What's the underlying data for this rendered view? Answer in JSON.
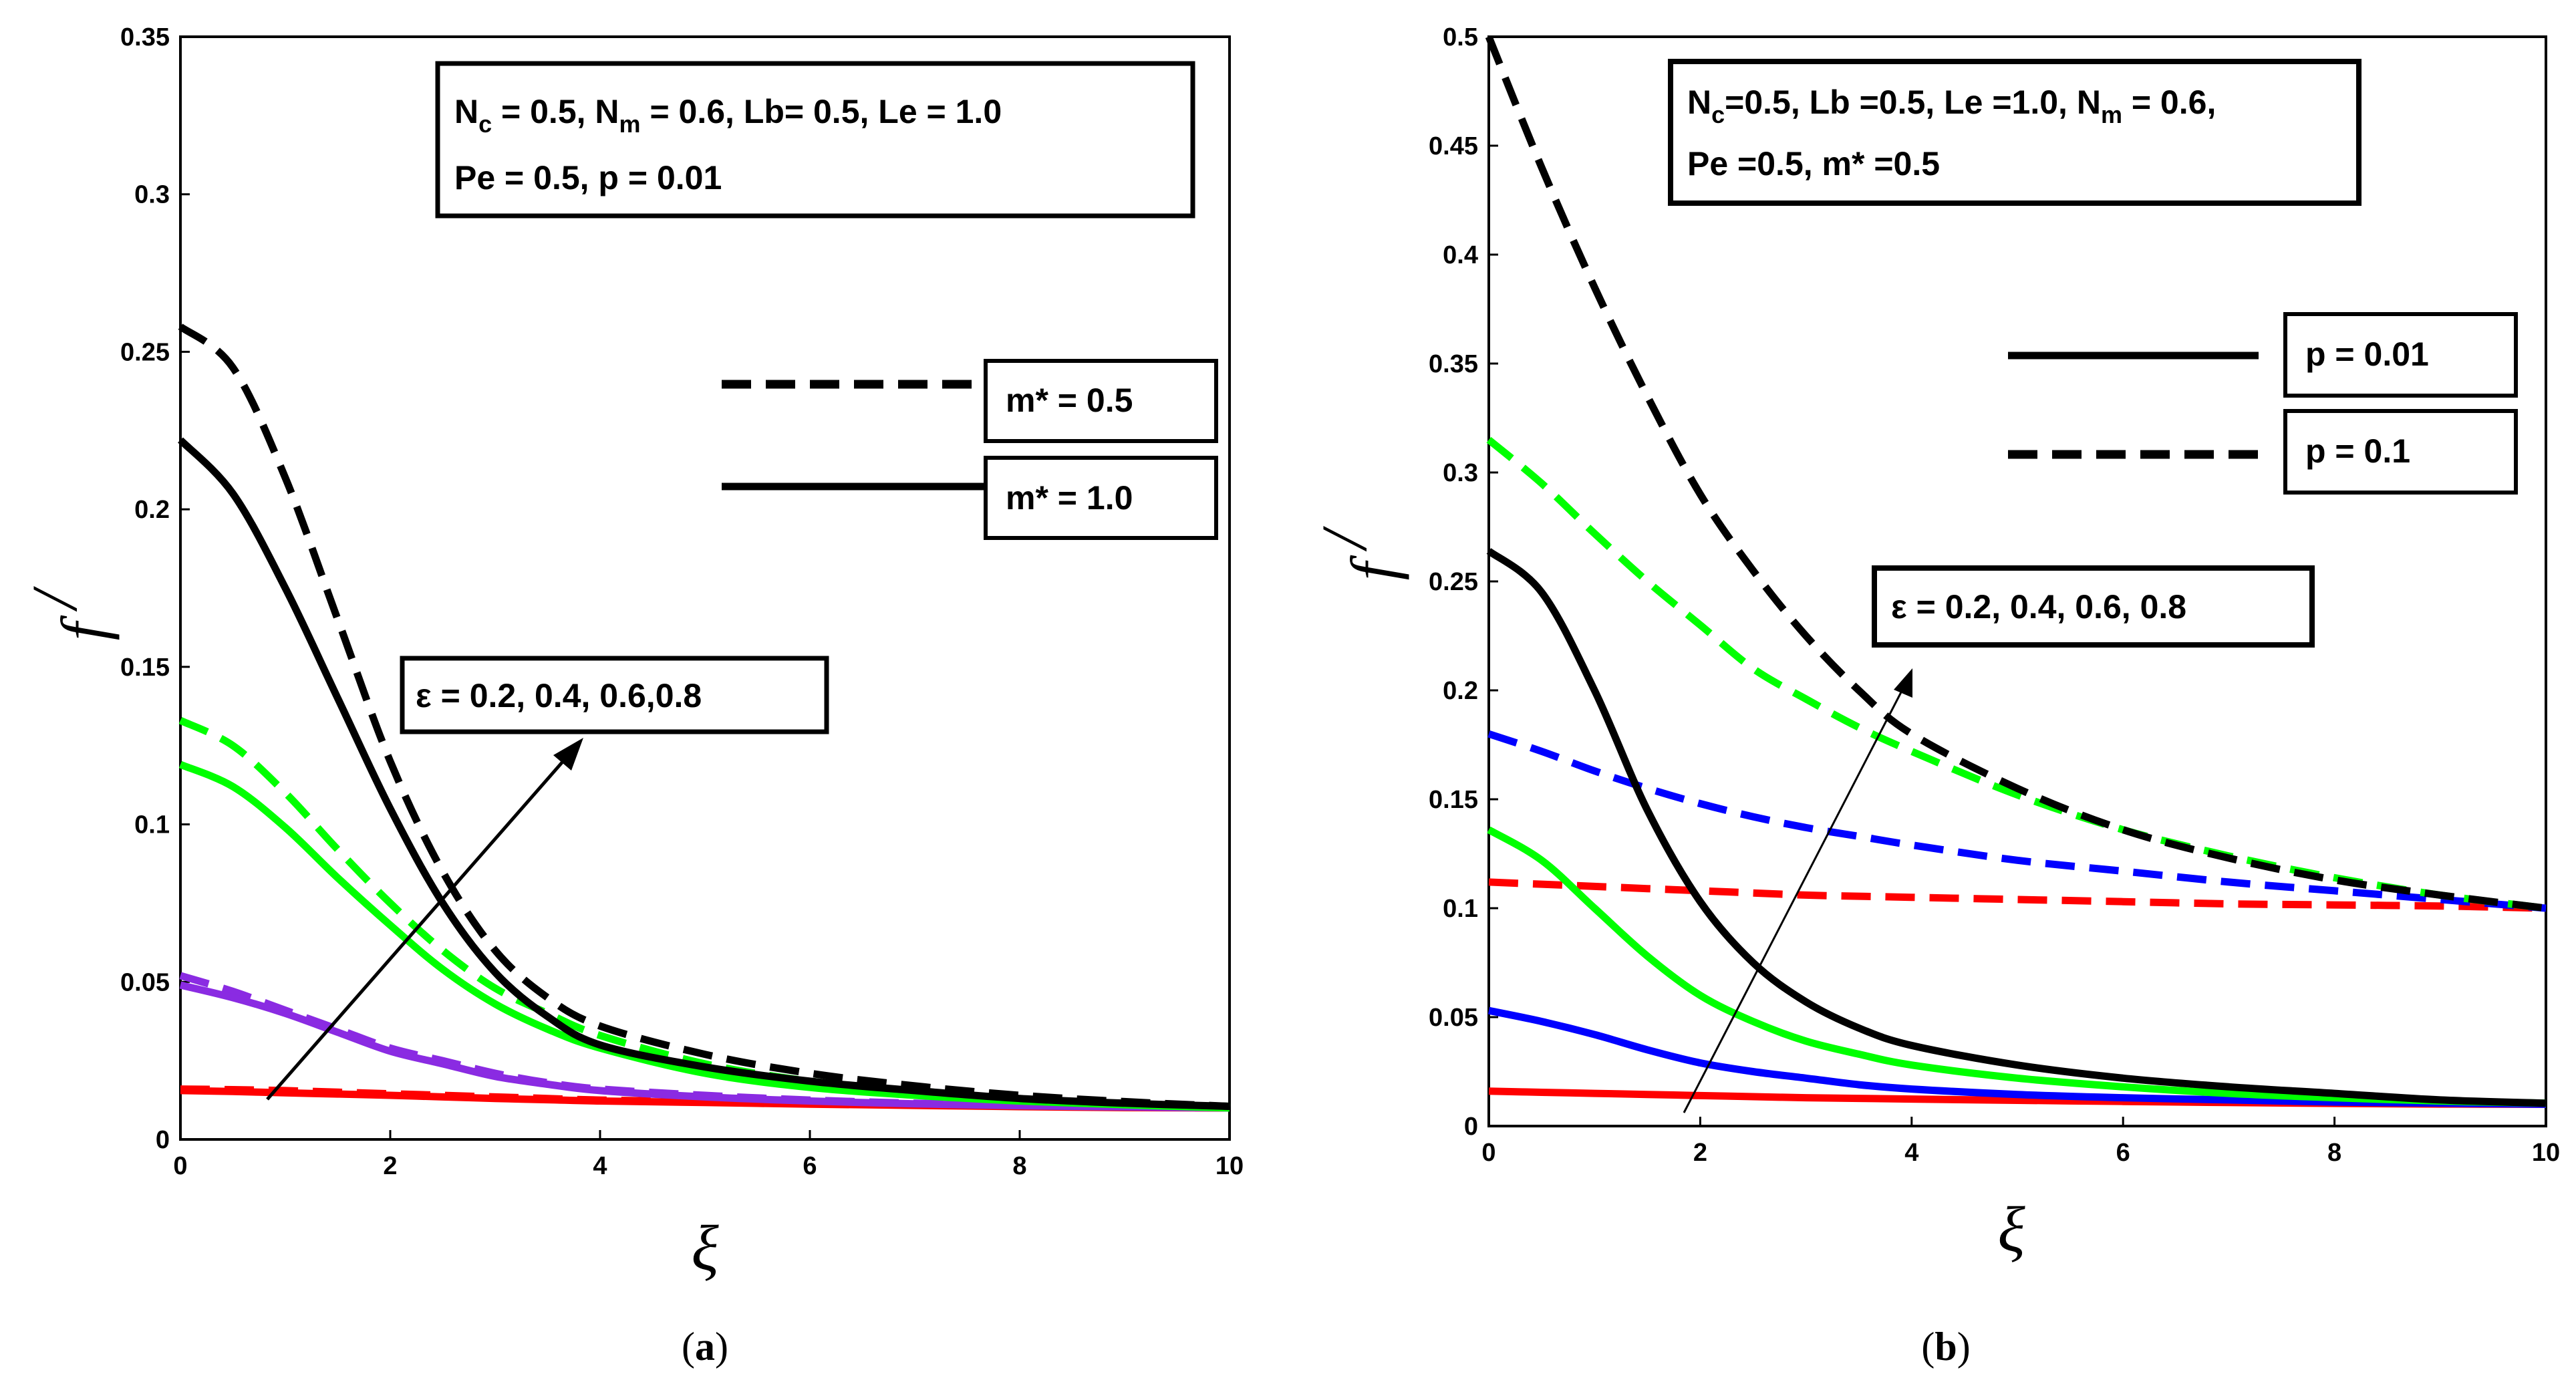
{
  "figure": {
    "panels": [
      {
        "caption_open": "(",
        "caption_letter": "a",
        "caption_close": ")",
        "ylabel": "f",
        "ylabel_prime": "/",
        "xlabel": "ξ",
        "params": {
          "line1": [
            "N",
            "c",
            " = 0.5, N",
            "m",
            " = 0.6, Lb= 0.5, Le = 1.0"
          ],
          "line2": "Pe = 0.5,  p = 0.01"
        },
        "legend": [
          {
            "label": "m* = 0.5",
            "style": "dashed"
          },
          {
            "label": "m* = 1.0",
            "style": "solid"
          }
        ],
        "annotation": "ε = 0.2, 0.4, 0.6,0.8"
      },
      {
        "caption_open": "(",
        "caption_letter": "b",
        "caption_close": ")",
        "ylabel": "f",
        "ylabel_prime": "/",
        "xlabel": "ξ",
        "params": {
          "line1": [
            "N",
            "c",
            "=0.5, Lb =0.5, Le =1.0, N",
            "m",
            " = 0.6,"
          ],
          "line2": "Pe =0.5, m* =0.5"
        },
        "legend": [
          {
            "label": "p = 0.01",
            "style": "solid"
          },
          {
            "label": "p = 0.1",
            "style": "dashed"
          }
        ],
        "annotation": "ε = 0.2, 0.4, 0.6, 0.8"
      }
    ]
  },
  "chart_data": [
    {
      "type": "line",
      "title": "",
      "xlabel": "ξ",
      "ylabel": "f'",
      "xlim": [
        0,
        10
      ],
      "ylim": [
        0,
        0.35
      ],
      "xticks": [
        0,
        2,
        4,
        6,
        8,
        10
      ],
      "yticks": [
        0,
        0.05,
        0.1,
        0.15,
        0.2,
        0.25,
        0.3,
        0.35
      ],
      "xtick_labels": [
        "0",
        "2",
        "4",
        "6",
        "8",
        "10"
      ],
      "ytick_labels": [
        "0",
        "0.05",
        "0.1",
        "0.15",
        "0.2",
        "0.25",
        "0.3",
        "0.35"
      ],
      "x": [
        0,
        0.5,
        1,
        1.5,
        2,
        2.5,
        3,
        3.5,
        4,
        5,
        6,
        7,
        8,
        9,
        10
      ],
      "series": [
        {
          "name": "ε = 0.2, m* = 0.5",
          "color": "#ff0000",
          "style": "dashed",
          "values": [
            0.016,
            0.0158,
            0.0155,
            0.015,
            0.0145,
            0.014,
            0.0135,
            0.013,
            0.0125,
            0.012,
            0.0115,
            0.011,
            0.0105,
            0.0102,
            0.01
          ]
        },
        {
          "name": "ε = 0.2, m* = 1.0",
          "color": "#ff0000",
          "style": "solid",
          "values": [
            0.0155,
            0.0152,
            0.0148,
            0.0144,
            0.014,
            0.0135,
            0.013,
            0.0126,
            0.0122,
            0.0117,
            0.0112,
            0.0108,
            0.0104,
            0.0101,
            0.01
          ]
        },
        {
          "name": "ε = 0.4, m* = 0.5",
          "color": "#8a2be2",
          "style": "dashed",
          "values": [
            0.052,
            0.047,
            0.041,
            0.035,
            0.029,
            0.025,
            0.021,
            0.018,
            0.016,
            0.014,
            0.0125,
            0.0115,
            0.011,
            0.0105,
            0.01
          ]
        },
        {
          "name": "ε = 0.4, m* = 1.0",
          "color": "#8a2be2",
          "style": "solid",
          "values": [
            0.049,
            0.045,
            0.04,
            0.034,
            0.028,
            0.024,
            0.02,
            0.0175,
            0.0155,
            0.0135,
            0.0122,
            0.0113,
            0.0107,
            0.0103,
            0.01
          ]
        },
        {
          "name": "ε = 0.6, m* = 0.5",
          "color": "#00ff00",
          "style": "dashed",
          "values": [
            0.133,
            0.125,
            0.11,
            0.092,
            0.075,
            0.06,
            0.048,
            0.04,
            0.033,
            0.024,
            0.0185,
            0.0155,
            0.013,
            0.0115,
            0.0105
          ]
        },
        {
          "name": "ε = 0.6, m* = 1.0",
          "color": "#00ff00",
          "style": "solid",
          "values": [
            0.119,
            0.112,
            0.099,
            0.083,
            0.068,
            0.054,
            0.043,
            0.035,
            0.029,
            0.021,
            0.0165,
            0.014,
            0.0122,
            0.011,
            0.01
          ]
        },
        {
          "name": "ε = 0.8, m* = 0.5",
          "color": "#000000",
          "style": "dashed",
          "values": [
            0.258,
            0.245,
            0.21,
            0.165,
            0.12,
            0.085,
            0.06,
            0.045,
            0.036,
            0.027,
            0.021,
            0.017,
            0.014,
            0.012,
            0.0105
          ]
        },
        {
          "name": "ε = 0.8, m* = 1.0",
          "color": "#000000",
          "style": "solid",
          "values": [
            0.222,
            0.205,
            0.175,
            0.14,
            0.105,
            0.075,
            0.053,
            0.039,
            0.03,
            0.023,
            0.0185,
            0.0155,
            0.013,
            0.0115,
            0.0105
          ]
        }
      ]
    },
    {
      "type": "line",
      "title": "",
      "xlabel": "ξ",
      "ylabel": "f'",
      "xlim": [
        0,
        10
      ],
      "ylim": [
        0,
        0.5
      ],
      "xticks": [
        0,
        2,
        4,
        6,
        8,
        10
      ],
      "yticks": [
        0,
        0.05,
        0.1,
        0.15,
        0.2,
        0.25,
        0.3,
        0.35,
        0.4,
        0.45,
        0.5
      ],
      "xtick_labels": [
        "0",
        "2",
        "4",
        "6",
        "8",
        "10"
      ],
      "ytick_labels": [
        "0",
        "0.05",
        "0.1",
        "0.15",
        "0.2",
        "0.25",
        "0.3",
        "0.35",
        "0.4",
        "0.45",
        "0.5"
      ],
      "x": [
        0,
        0.5,
        1,
        1.5,
        2,
        2.5,
        3,
        3.5,
        4,
        5,
        6,
        7,
        8,
        9,
        10
      ],
      "series": [
        {
          "name": "ε = 0.2, p = 0.01",
          "color": "#ff0000",
          "style": "solid",
          "values": [
            0.016,
            0.0155,
            0.015,
            0.0145,
            0.014,
            0.0135,
            0.013,
            0.0127,
            0.0124,
            0.0118,
            0.0113,
            0.0108,
            0.0104,
            0.0101,
            0.01
          ]
        },
        {
          "name": "ε = 0.2, p = 0.1",
          "color": "#ff0000",
          "style": "dashed",
          "values": [
            0.112,
            0.111,
            0.11,
            0.109,
            0.108,
            0.107,
            0.106,
            0.1055,
            0.105,
            0.104,
            0.103,
            0.102,
            0.1015,
            0.101,
            0.1
          ]
        },
        {
          "name": "ε = 0.4, p = 0.01",
          "color": "#0000ff",
          "style": "solid",
          "values": [
            0.053,
            0.048,
            0.042,
            0.035,
            0.029,
            0.025,
            0.022,
            0.019,
            0.017,
            0.0145,
            0.013,
            0.012,
            0.011,
            0.0105,
            0.01
          ]
        },
        {
          "name": "ε = 0.4, p = 0.1",
          "color": "#0000ff",
          "style": "dashed",
          "values": [
            0.18,
            0.172,
            0.163,
            0.155,
            0.148,
            0.142,
            0.137,
            0.133,
            0.129,
            0.122,
            0.117,
            0.112,
            0.108,
            0.104,
            0.1
          ]
        },
        {
          "name": "ε = 0.6, p = 0.01",
          "color": "#00ff00",
          "style": "solid",
          "values": [
            0.136,
            0.122,
            0.1,
            0.078,
            0.06,
            0.048,
            0.039,
            0.033,
            0.028,
            0.022,
            0.018,
            0.015,
            0.013,
            0.0115,
            0.0105
          ]
        },
        {
          "name": "ε = 0.6, p = 0.1",
          "color": "#00ff00",
          "style": "dashed",
          "values": [
            0.315,
            0.295,
            0.272,
            0.25,
            0.23,
            0.21,
            0.196,
            0.183,
            0.172,
            0.152,
            0.136,
            0.124,
            0.114,
            0.106,
            0.1
          ]
        },
        {
          "name": "ε = 0.8, p = 0.01",
          "color": "#000000",
          "style": "solid",
          "values": [
            0.264,
            0.245,
            0.2,
            0.145,
            0.103,
            0.075,
            0.057,
            0.045,
            0.037,
            0.028,
            0.022,
            0.018,
            0.015,
            0.012,
            0.0105
          ]
        },
        {
          "name": "ε = 0.8, p = 0.1",
          "color": "#000000",
          "style": "dashed",
          "values": [
            0.5,
            0.44,
            0.385,
            0.335,
            0.29,
            0.255,
            0.225,
            0.2,
            0.18,
            0.155,
            0.136,
            0.123,
            0.113,
            0.106,
            0.1
          ]
        }
      ]
    }
  ]
}
